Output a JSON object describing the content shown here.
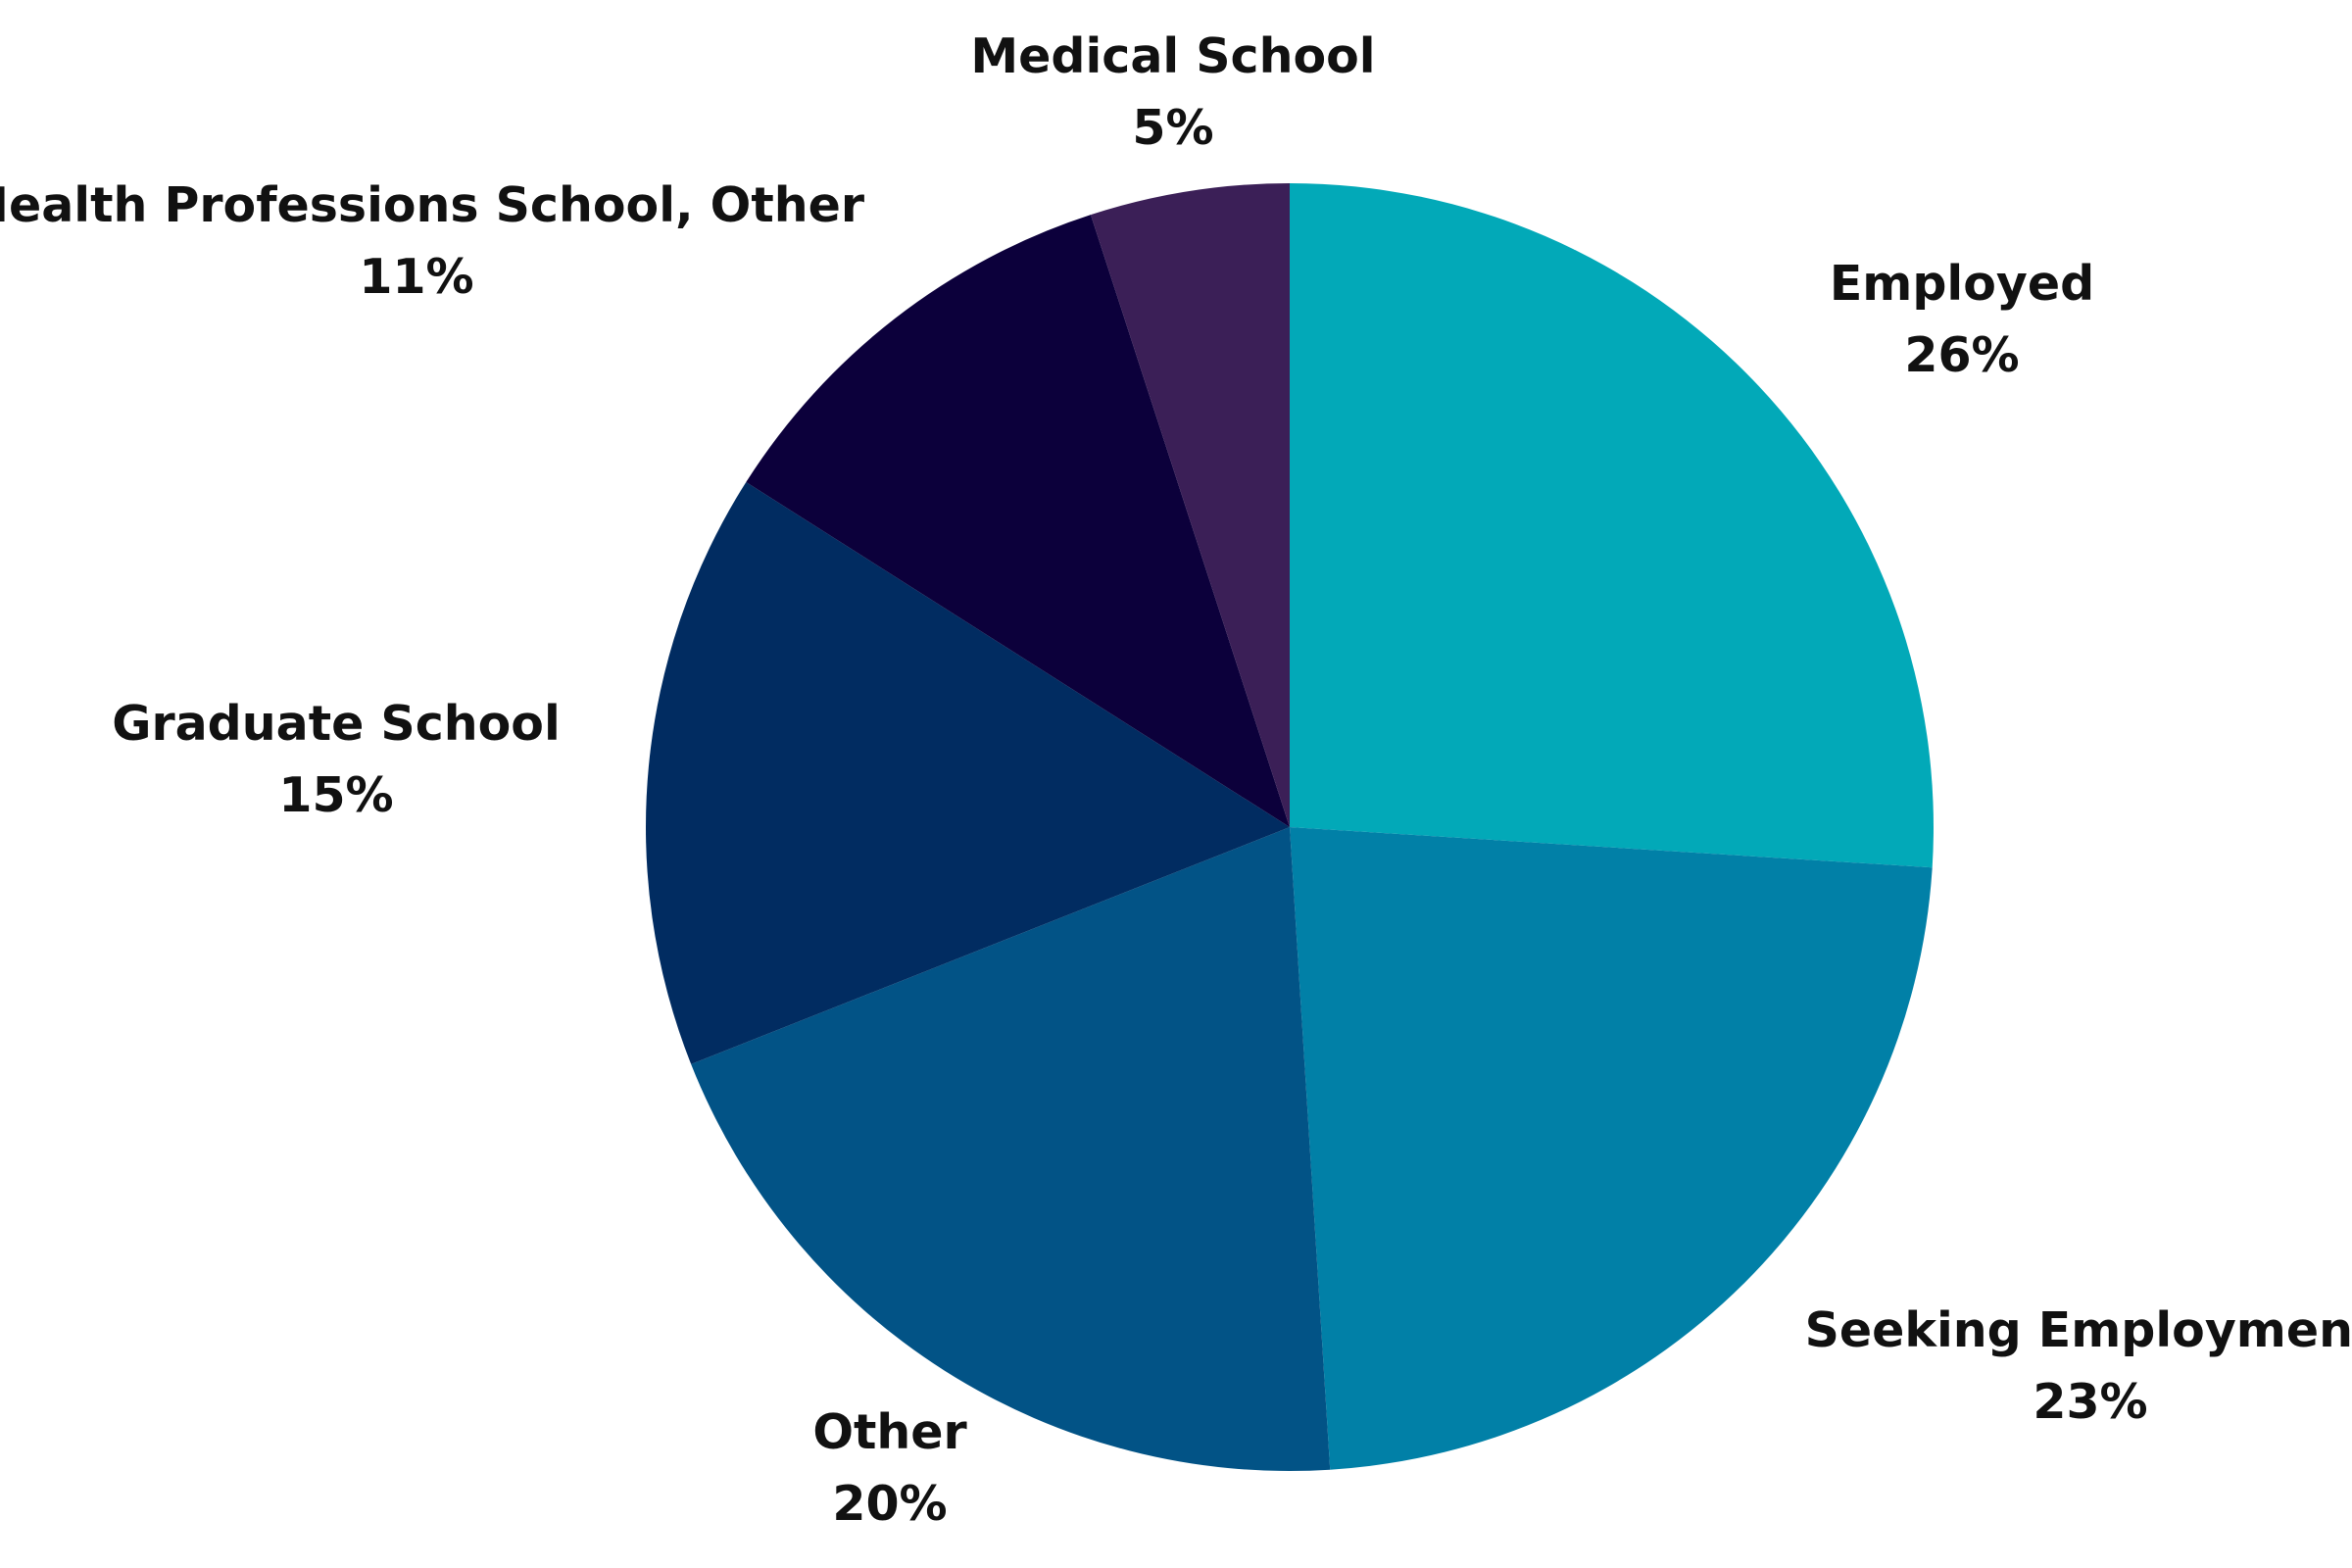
{
  "chart_data": {
    "type": "pie",
    "title": "",
    "slices": [
      {
        "label": "Employed",
        "percent_label": "26%",
        "value": 26,
        "color": "#02a9b8"
      },
      {
        "label": "Seeking Employment",
        "percent_label": "23%",
        "value": 23,
        "color": "#0180a7"
      },
      {
        "label": "Other",
        "percent_label": "20%",
        "value": 20,
        "color": "#025386"
      },
      {
        "label": "Graduate School",
        "percent_label": "15%",
        "value": 15,
        "color": "#012c61"
      },
      {
        "label": "Health Professions School, Other",
        "percent_label": "11%",
        "value": 11,
        "color": "#0c003b"
      },
      {
        "label": "Medical School",
        "percent_label": "5%",
        "value": 5,
        "color": "#3b1f57"
      }
    ],
    "start_angle": "12 o'clock",
    "direction": "clockwise",
    "legend": "none"
  }
}
